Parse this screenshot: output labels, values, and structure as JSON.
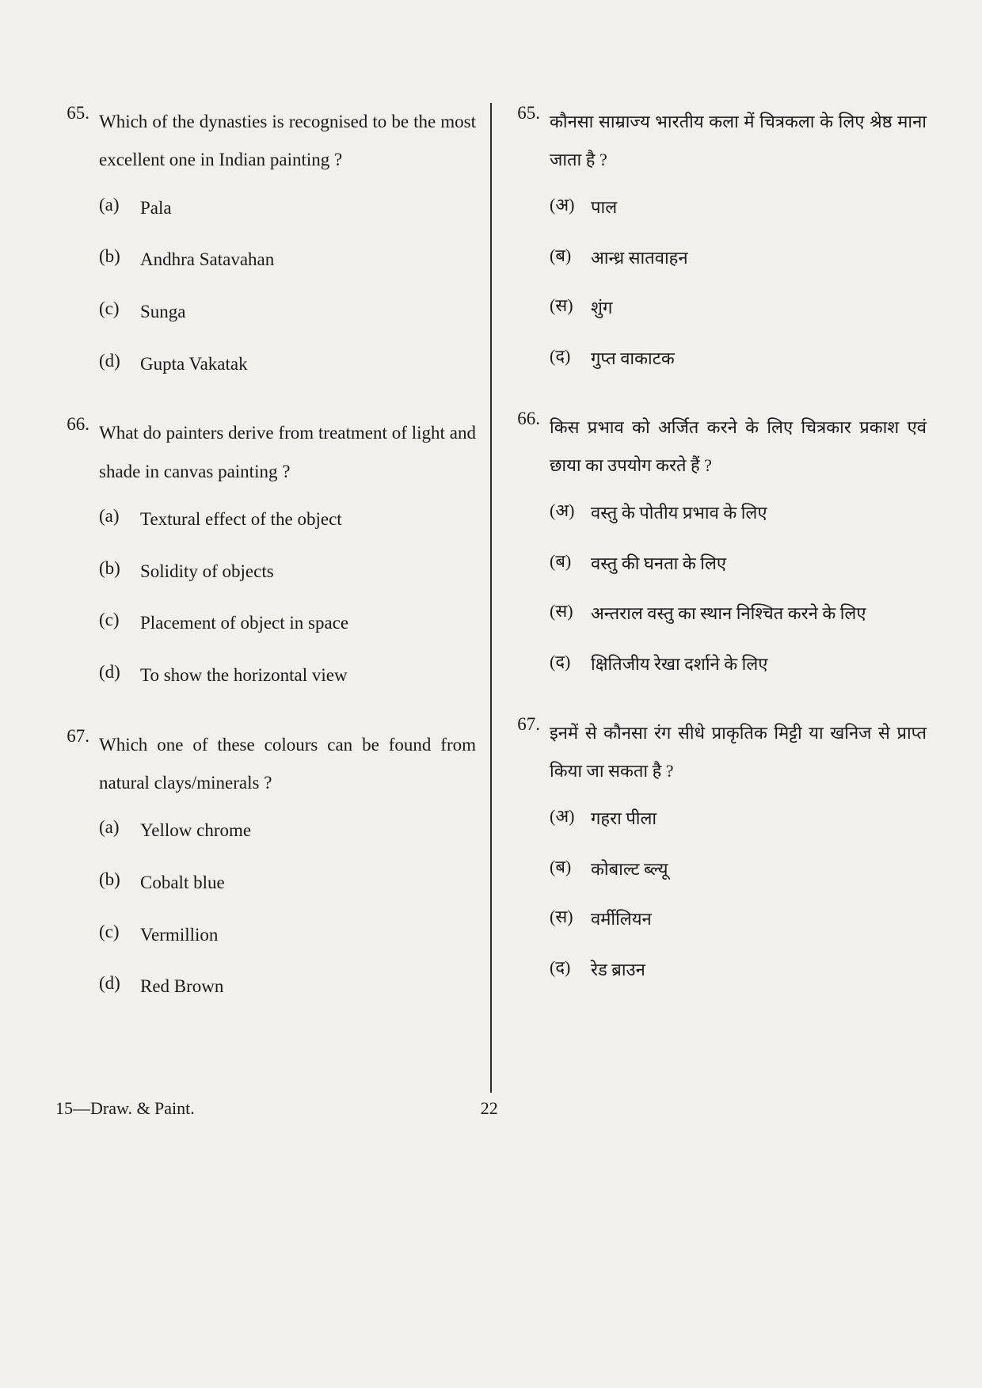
{
  "colors": {
    "background": "#f2f0ec",
    "text": "#1a1a1a",
    "divider": "#2a2a2a"
  },
  "typography": {
    "body_fontsize": 23,
    "hindi_fontsize": 22,
    "line_height_en": 2.1,
    "line_height_hi": 2.2
  },
  "left_column": {
    "questions": [
      {
        "number": "65.",
        "text": "Which of the dynasties is recognised to be the most excellent one in Indian painting ?",
        "options": [
          {
            "label": "(a)",
            "text": "Pala"
          },
          {
            "label": "(b)",
            "text": "Andhra Satavahan"
          },
          {
            "label": "(c)",
            "text": "Sunga"
          },
          {
            "label": "(d)",
            "text": "Gupta Vakatak"
          }
        ]
      },
      {
        "number": "66.",
        "text": "What do painters derive from treatment of light and shade in canvas painting ?",
        "options": [
          {
            "label": "(a)",
            "text": "Textural effect of the object"
          },
          {
            "label": "(b)",
            "text": "Solidity of objects"
          },
          {
            "label": "(c)",
            "text": "Placement of object in space"
          },
          {
            "label": "(d)",
            "text": "To show the horizontal view"
          }
        ]
      },
      {
        "number": "67.",
        "text": "Which one of these colours can be found from natural clays/minerals ?",
        "options": [
          {
            "label": "(a)",
            "text": "Yellow chrome"
          },
          {
            "label": "(b)",
            "text": "Cobalt blue"
          },
          {
            "label": "(c)",
            "text": "Vermillion"
          },
          {
            "label": "(d)",
            "text": "Red Brown"
          }
        ]
      }
    ]
  },
  "right_column": {
    "questions": [
      {
        "number": "65.",
        "text": "कौनसा साम्राज्य भारतीय कला में चित्रकला के लिए श्रेष्ठ माना जाता है ?",
        "options": [
          {
            "label": "(अ)",
            "text": "पाल"
          },
          {
            "label": "(ब)",
            "text": "आन्ध्र सातवाहन"
          },
          {
            "label": "(स)",
            "text": "शुंग"
          },
          {
            "label": "(द)",
            "text": "गुप्त वाकाटक"
          }
        ]
      },
      {
        "number": "66.",
        "text": "किस प्रभाव को अर्जित करने के लिए चित्रकार प्रकाश एवं छाया का उपयोग करते हैं ?",
        "options": [
          {
            "label": "(अ)",
            "text": "वस्तु के पोतीय प्रभाव के लिए"
          },
          {
            "label": "(ब)",
            "text": "वस्तु की घनता के लिए"
          },
          {
            "label": "(स)",
            "text": "अन्तराल वस्तु का स्थान निश्चित करने के लिए"
          },
          {
            "label": "(द)",
            "text": "क्षितिजीय रेखा दर्शाने के लिए"
          }
        ]
      },
      {
        "number": "67.",
        "text": "इनमें से कौनसा रंग सीधे प्राकृतिक मिट्टी या खनिज से प्राप्त किया जा सकता है ?",
        "options": [
          {
            "label": "(अ)",
            "text": "गहरा पीला"
          },
          {
            "label": "(ब)",
            "text": "कोबाल्ट ब्ल्यू"
          },
          {
            "label": "(स)",
            "text": "वर्मीलियन"
          },
          {
            "label": "(द)",
            "text": "रेड ब्राउन"
          }
        ]
      }
    ]
  },
  "footer": {
    "subject": "15—Draw. & Paint.",
    "page": "22"
  }
}
